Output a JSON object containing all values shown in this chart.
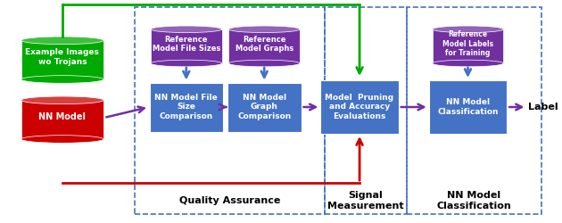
{
  "title": "",
  "bg_color": "#ffffff",
  "box_blue": "#4472C4",
  "box_blue_dark": "#3A5FA0",
  "cyl_red": "#CC0000",
  "cyl_green": "#00AA00",
  "cyl_purple": "#7030A0",
  "arrow_purple": "#7030A0",
  "arrow_red": "#CC0000",
  "arrow_green": "#00AA00",
  "arrow_blue": "#4472C4",
  "dashed_border": "#4472C4",
  "section_labels": [
    "Quality Assurance",
    "Signal\nMeasurement",
    "NN Model\nClassification"
  ],
  "box_labels": [
    "NN Model File\nSize\nComparison",
    "NN Model\nGraph\nComparison",
    "Model  Pruning\nand Accuracy\nEvaluations",
    "NN Model\nClassification"
  ],
  "cyl_labels_top": [
    "NN Model",
    "Example Images\nwo Trojans"
  ],
  "cyl_labels_bottom": [
    "Reference\nModel File Sizes",
    "Reference\nModel Graphs",
    "Reference\nModel Labels\nfor Training"
  ],
  "label_text": "Label"
}
